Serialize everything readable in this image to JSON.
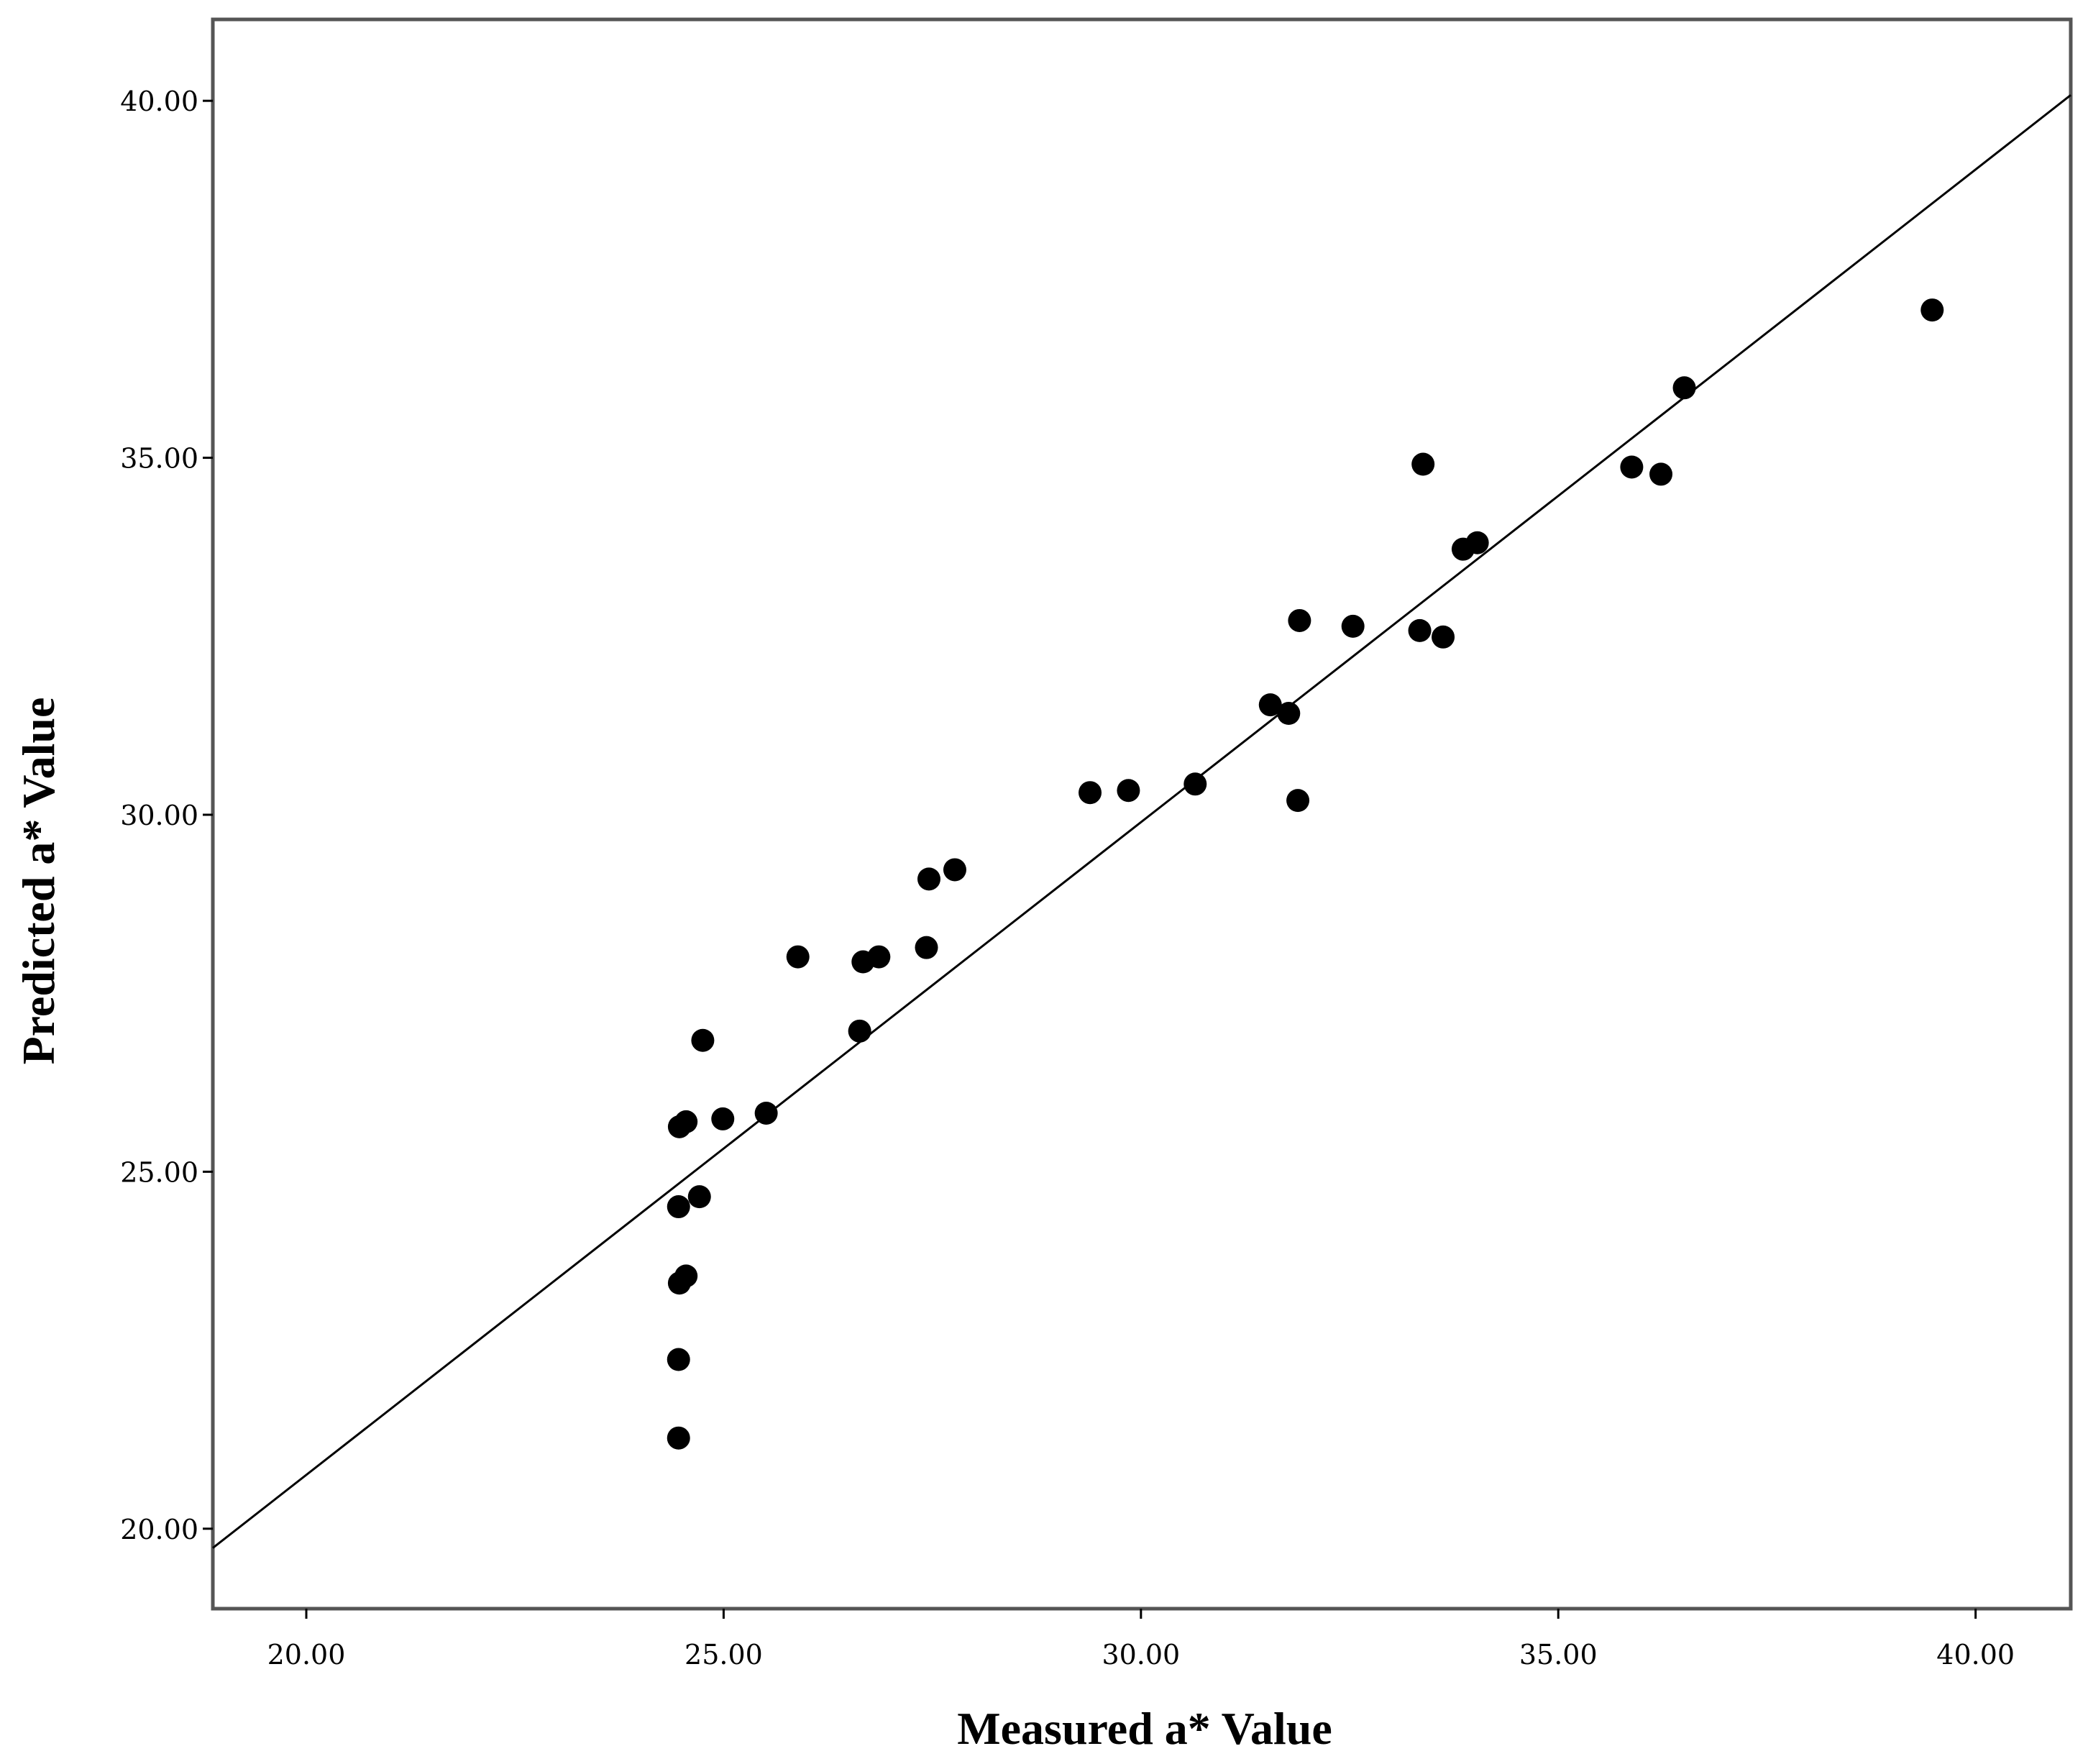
{
  "chart_data": {
    "type": "scatter",
    "title": "",
    "xlabel": "Measured a* Value",
    "ylabel": "Predicted a* Value",
    "xlim": [
      18.88,
      41.14
    ],
    "ylim": [
      18.88,
      41.14
    ],
    "x_ticks": [
      "20.00",
      "25.00",
      "30.00",
      "35.00",
      "40.00"
    ],
    "y_ticks": [
      "20.00",
      "25.00",
      "30.00",
      "35.00",
      "40.00"
    ],
    "grid": false,
    "legend": "none",
    "series": [
      {
        "marker_color": "#000000",
        "points": [
          [
            24.46,
            21.27
          ],
          [
            24.46,
            22.37
          ],
          [
            24.47,
            23.44
          ],
          [
            24.55,
            23.54
          ],
          [
            24.46,
            24.51
          ],
          [
            24.71,
            24.65
          ],
          [
            24.47,
            25.63
          ],
          [
            24.55,
            25.7
          ],
          [
            24.99,
            25.74
          ],
          [
            24.75,
            26.84
          ],
          [
            25.51,
            25.82
          ],
          [
            25.89,
            28.01
          ],
          [
            26.63,
            26.97
          ],
          [
            26.67,
            27.94
          ],
          [
            26.86,
            28.01
          ],
          [
            27.43,
            28.14
          ],
          [
            27.46,
            29.1
          ],
          [
            27.77,
            29.23
          ],
          [
            29.39,
            30.31
          ],
          [
            29.85,
            30.34
          ],
          [
            30.65,
            30.43
          ],
          [
            31.55,
            31.54
          ],
          [
            31.77,
            31.42
          ],
          [
            31.9,
            32.72
          ],
          [
            31.88,
            30.2
          ],
          [
            32.54,
            32.64
          ],
          [
            33.34,
            32.58
          ],
          [
            33.62,
            32.49
          ],
          [
            33.38,
            34.91
          ],
          [
            33.86,
            33.72
          ],
          [
            34.03,
            33.81
          ],
          [
            35.88,
            34.87
          ],
          [
            36.23,
            34.77
          ],
          [
            36.51,
            35.98
          ],
          [
            39.48,
            37.07
          ]
        ]
      }
    ],
    "reference_line": {
      "x": [
        18.88,
        41.14
      ],
      "y": [
        19.73,
        40.08
      ]
    }
  }
}
